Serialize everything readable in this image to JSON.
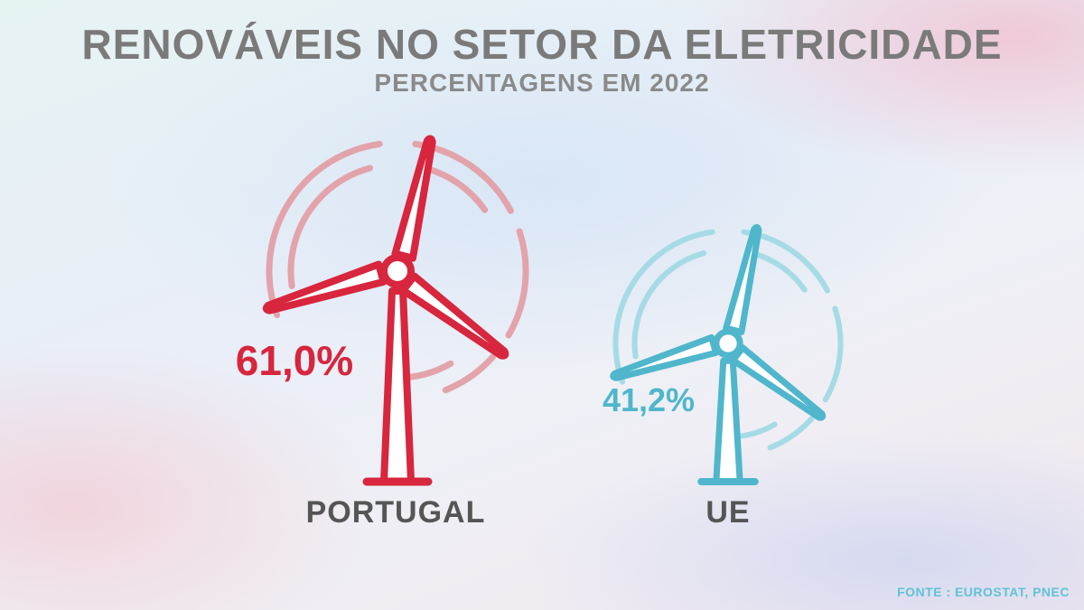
{
  "header": {
    "title": "RENOVÁVEIS NO SETOR DA ELETRICIDADE",
    "subtitle": "PERCENTAGENS EM 2022"
  },
  "footer": {
    "source": "FONTE : EUROSTAT, PNEC"
  },
  "colors": {
    "portugal": "#d7263d",
    "portugal_swirl": "#e3a3ab",
    "ue": "#4fb6cc",
    "ue_swirl": "#a6dbe6",
    "label": "#555555",
    "title": "#7a7a7a"
  },
  "chart_data": {
    "type": "pictograph",
    "icon": "wind-turbine-icon",
    "unit": "%",
    "title": "RENOVÁVEIS NO SETOR DA ELETRICIDADE",
    "subtitle": "PERCENTAGENS EM 2022",
    "categories": [
      "PORTUGAL",
      "UE"
    ],
    "values": [
      61.0,
      41.2
    ],
    "value_labels": [
      "61,0%",
      "41,2%"
    ]
  }
}
